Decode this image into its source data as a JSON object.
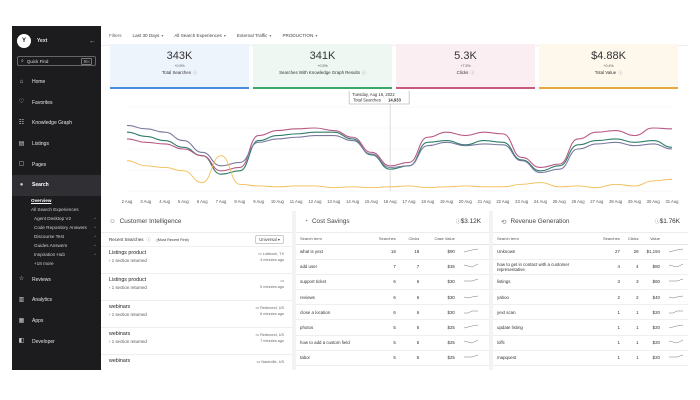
{
  "sidebar": {
    "brand": "Yext",
    "logo": "Y",
    "quick_find": {
      "label": "Quick Find",
      "shortcut": "⌘K"
    },
    "items": [
      {
        "label": "Home",
        "icon": "home-icon",
        "glyph": "⌂"
      },
      {
        "label": "Favorites",
        "icon": "heart-icon",
        "glyph": "♡"
      },
      {
        "label": "Knowledge Graph",
        "icon": "graph-icon",
        "glyph": "☷"
      },
      {
        "label": "Listings",
        "icon": "listings-icon",
        "glyph": "▤"
      },
      {
        "label": "Pages",
        "icon": "pages-icon",
        "glyph": "▢"
      },
      {
        "label": "Search",
        "icon": "bulb-icon",
        "glyph": "●"
      }
    ],
    "search_sub": {
      "overview": "Overview",
      "all_experiences": "All Search Experiences",
      "experiences": [
        "Agent Desktop V2",
        "Code Repository Answers",
        "Discourse Test",
        "Guides Answers",
        "Inspiration Hub"
      ],
      "more": "+18 more"
    },
    "bottom_items": [
      {
        "label": "Reviews",
        "icon": "reviews-icon",
        "glyph": "☆"
      },
      {
        "label": "Analytics",
        "icon": "analytics-icon",
        "glyph": "▥"
      },
      {
        "label": "Apps",
        "icon": "apps-icon",
        "glyph": "▦"
      },
      {
        "label": "Developer",
        "icon": "developer-icon",
        "glyph": "◧"
      }
    ]
  },
  "filters": {
    "label": "Filters",
    "items": [
      "Last 30 Days",
      "All Search Experiences",
      "External Traffic",
      "PRODUCTION"
    ]
  },
  "kpis": [
    {
      "value": "343K",
      "delta": "+0.5%",
      "label": "Total Searches",
      "bg": "#eef4fc",
      "color": "#4a8de0"
    },
    {
      "value": "341K",
      "delta": "+0.5%",
      "label": "Searches With Knowledge Graph Results",
      "bg": "#eef7f1",
      "color": "#3aa86a"
    },
    {
      "value": "5.3K",
      "delta": "+7.5%",
      "label": "Clicks",
      "bg": "#fbeef3",
      "color": "#c75b7a"
    },
    {
      "value": "$4.88K",
      "delta": "+0.4%",
      "label": "Total Value",
      "bg": "#fdf7ec",
      "color": "#e6a93f"
    }
  ],
  "chart_data": {
    "type": "line",
    "x": [
      "2 Aug",
      "3 Aug",
      "4 Aug",
      "5 Aug",
      "6 Aug",
      "7 Aug",
      "8 Aug",
      "9 Aug",
      "10 Aug",
      "11 Aug",
      "12 Aug",
      "13 Aug",
      "14 Aug",
      "15 Aug",
      "16 Aug",
      "17 Aug",
      "18 Aug",
      "19 Aug",
      "20 Aug",
      "21 Aug",
      "22 Aug",
      "23 Aug",
      "24 Aug",
      "25 Aug",
      "26 Aug",
      "27 Aug",
      "28 Aug",
      "29 Aug",
      "30 Aug",
      "31 Aug"
    ],
    "ylim": [
      0,
      100
    ],
    "series": [
      {
        "color": "#2e7d6b",
        "values": [
          70,
          65,
          60,
          52,
          42,
          20,
          24,
          60,
          66,
          68,
          70,
          70,
          62,
          43,
          26,
          30,
          58,
          60,
          55,
          60,
          58,
          37,
          24,
          30,
          55,
          60,
          62,
          58,
          60,
          52
        ]
      },
      {
        "color": "#b85a84",
        "values": [
          62,
          58,
          56,
          50,
          42,
          24,
          28,
          66,
          72,
          74,
          75,
          72,
          64,
          46,
          30,
          34,
          64,
          70,
          66,
          70,
          68,
          40,
          28,
          32,
          62,
          70,
          72,
          66,
          75,
          74
        ]
      },
      {
        "color": "#7a7aa0",
        "values": [
          78,
          74,
          70,
          60,
          46,
          30,
          34,
          58,
          62,
          64,
          66,
          66,
          60,
          44,
          28,
          30,
          54,
          58,
          54,
          56,
          55,
          36,
          22,
          26,
          50,
          56,
          58,
          54,
          56,
          50
        ]
      },
      {
        "color": "#f2bd52",
        "values": [
          36,
          30,
          28,
          24,
          10,
          42,
          8,
          6,
          5,
          6,
          6,
          4,
          5,
          4,
          5,
          6,
          4,
          5,
          6,
          5,
          5,
          8,
          10,
          5,
          6,
          4,
          8,
          6,
          12,
          14
        ]
      }
    ],
    "tooltip": {
      "date": "Tuesday, Aug 16, 2022",
      "label": "Total Searches",
      "value": "14,933",
      "index": 14
    }
  },
  "customer_intelligence": {
    "title": "Customer Intelligence",
    "recent_label": "Recent Searches",
    "most_recent": "(Most Recent First)",
    "filter": "Universal",
    "items": [
      {
        "query": "Listings product",
        "sections": "1 section returned",
        "location": "Lubbock, TX",
        "time": "4 minutes ago"
      },
      {
        "query": "Listings product",
        "sections": "1 section returned",
        "location": "",
        "time": "5 minutes ago"
      },
      {
        "query": "webinars",
        "sections": "1 section returned",
        "location": "Redmond, US",
        "time": "6 minutes ago"
      },
      {
        "query": "webinars",
        "sections": "1 section returned",
        "location": "Redmond, US",
        "time": "7 minutes ago"
      },
      {
        "query": "webinars",
        "sections": "",
        "location": "Nashville, US",
        "time": ""
      }
    ]
  },
  "cost_savings": {
    "title": "Cost Savings",
    "amount": "$3.12K",
    "columns": [
      "Search term",
      "Searches",
      "Clicks",
      "Case Value"
    ],
    "rows": [
      [
        "what is yext",
        "18",
        "18",
        "$90"
      ],
      [
        "add user",
        "7",
        "7",
        "$35"
      ],
      [
        "support ticket",
        "6",
        "6",
        "$30"
      ],
      [
        "reviews",
        "6",
        "6",
        "$30"
      ],
      [
        "close a location",
        "6",
        "6",
        "$30"
      ],
      [
        "photos",
        "5",
        "6",
        "$25"
      ],
      [
        "how to add a custom field",
        "5",
        "5",
        "$25"
      ],
      [
        "tabor",
        "5",
        "5",
        "$25"
      ]
    ]
  },
  "revenue_generation": {
    "title": "Revenue Generation",
    "amount": "$1.76K",
    "columns": [
      "Search term",
      "Searches",
      "Clicks",
      "Value"
    ],
    "rows": [
      [
        "Unknown",
        "27",
        "28",
        "$1,194"
      ],
      [
        "how to get in contact with a customer representative",
        "4",
        "4",
        "$80"
      ],
      [
        "listings",
        "3",
        "3",
        "$60"
      ],
      [
        "yahoo",
        "2",
        "2",
        "$40"
      ],
      [
        "yext scan",
        "1",
        "1",
        "$20"
      ],
      [
        "update listing",
        "1",
        "1",
        "$20"
      ],
      [
        "loffc",
        "1",
        "1",
        "$20"
      ],
      [
        "mapquest",
        "1",
        "1",
        "$20"
      ]
    ]
  }
}
